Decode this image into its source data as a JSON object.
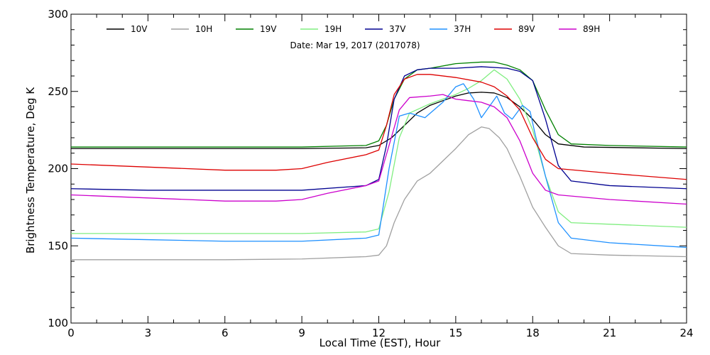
{
  "chart_data": {
    "type": "line",
    "title": "",
    "annotation": "Date: Mar 19, 2017 (2017078)",
    "xlabel": "Local Time (EST), Hour",
    "ylabel": "Brightness Temperature, Deg K",
    "xlim": [
      0,
      24
    ],
    "ylim": [
      100,
      300
    ],
    "xticks": [
      0,
      3,
      6,
      9,
      12,
      15,
      18,
      21,
      24
    ],
    "yticks": [
      100,
      150,
      200,
      250,
      300
    ],
    "grid": false,
    "legend_position": "top",
    "series": [
      {
        "name": "10V",
        "color": "#000000",
        "points": [
          [
            0,
            213
          ],
          [
            3,
            213
          ],
          [
            6,
            213
          ],
          [
            9,
            213
          ],
          [
            11.5,
            213.5
          ],
          [
            12,
            215
          ],
          [
            12.5,
            220
          ],
          [
            13,
            228
          ],
          [
            13.5,
            236
          ],
          [
            14,
            241
          ],
          [
            14.5,
            244
          ],
          [
            15,
            247
          ],
          [
            15.5,
            249
          ],
          [
            16,
            249.5
          ],
          [
            16.5,
            249
          ],
          [
            17,
            246
          ],
          [
            17.5,
            240
          ],
          [
            18,
            232
          ],
          [
            18.5,
            222
          ],
          [
            19,
            216
          ],
          [
            20,
            214
          ],
          [
            24,
            213
          ]
        ]
      },
      {
        "name": "10H",
        "color": "#a0a0a0",
        "points": [
          [
            0,
            141
          ],
          [
            3,
            141
          ],
          [
            6,
            141
          ],
          [
            9,
            141.5
          ],
          [
            11.5,
            143
          ],
          [
            12,
            144
          ],
          [
            12.3,
            150
          ],
          [
            12.6,
            165
          ],
          [
            13,
            180
          ],
          [
            13.5,
            192
          ],
          [
            14,
            197
          ],
          [
            14.5,
            205
          ],
          [
            15,
            213
          ],
          [
            15.5,
            222
          ],
          [
            16,
            227
          ],
          [
            16.3,
            226
          ],
          [
            16.7,
            220
          ],
          [
            17,
            213
          ],
          [
            17.5,
            195
          ],
          [
            18,
            175
          ],
          [
            18.5,
            162
          ],
          [
            19,
            150
          ],
          [
            19.5,
            145
          ],
          [
            21,
            144
          ],
          [
            24,
            143
          ]
        ]
      },
      {
        "name": "19V",
        "color": "#008000",
        "points": [
          [
            0,
            214
          ],
          [
            3,
            214
          ],
          [
            6,
            214
          ],
          [
            9,
            214
          ],
          [
            11.5,
            215
          ],
          [
            12,
            218
          ],
          [
            12.3,
            228
          ],
          [
            12.6,
            245
          ],
          [
            13,
            258
          ],
          [
            13.5,
            264
          ],
          [
            14,
            265
          ],
          [
            15,
            268
          ],
          [
            16,
            269
          ],
          [
            16.5,
            269
          ],
          [
            17,
            267
          ],
          [
            17.5,
            264
          ],
          [
            18,
            257
          ],
          [
            18.5,
            238
          ],
          [
            19,
            222
          ],
          [
            19.5,
            216
          ],
          [
            21,
            215
          ],
          [
            24,
            214
          ]
        ]
      },
      {
        "name": "19H",
        "color": "#80ee80",
        "points": [
          [
            0,
            158
          ],
          [
            3,
            158
          ],
          [
            6,
            158
          ],
          [
            9,
            158
          ],
          [
            11.5,
            159
          ],
          [
            12,
            161
          ],
          [
            12.4,
            185
          ],
          [
            12.8,
            220
          ],
          [
            13.2,
            236
          ],
          [
            14,
            242
          ],
          [
            15,
            248
          ],
          [
            15.5,
            252
          ],
          [
            16,
            257
          ],
          [
            16.5,
            264
          ],
          [
            17,
            258
          ],
          [
            17.5,
            245
          ],
          [
            18,
            225
          ],
          [
            18.5,
            195
          ],
          [
            19,
            172
          ],
          [
            19.5,
            165
          ],
          [
            21,
            164
          ],
          [
            24,
            162
          ]
        ]
      },
      {
        "name": "37V",
        "color": "#000090",
        "points": [
          [
            0,
            187
          ],
          [
            3,
            186
          ],
          [
            6,
            186
          ],
          [
            9,
            186
          ],
          [
            11.5,
            189
          ],
          [
            12,
            193
          ],
          [
            12.3,
            215
          ],
          [
            12.6,
            245
          ],
          [
            13,
            260
          ],
          [
            13.5,
            264
          ],
          [
            14,
            265
          ],
          [
            15,
            265
          ],
          [
            16,
            266
          ],
          [
            17,
            265
          ],
          [
            17.5,
            263
          ],
          [
            18,
            257
          ],
          [
            18.5,
            232
          ],
          [
            19,
            202
          ],
          [
            19.5,
            192
          ],
          [
            21,
            189
          ],
          [
            24,
            187
          ]
        ]
      },
      {
        "name": "37H",
        "color": "#1e90ff",
        "points": [
          [
            0,
            155
          ],
          [
            3,
            154
          ],
          [
            6,
            153
          ],
          [
            9,
            153
          ],
          [
            11.5,
            155
          ],
          [
            12,
            157
          ],
          [
            12.4,
            200
          ],
          [
            12.8,
            234
          ],
          [
            13.2,
            236
          ],
          [
            13.8,
            233
          ],
          [
            14.5,
            243
          ],
          [
            15,
            253
          ],
          [
            15.3,
            255
          ],
          [
            15.7,
            245
          ],
          [
            16,
            233
          ],
          [
            16.3,
            240
          ],
          [
            16.6,
            247
          ],
          [
            16.9,
            236
          ],
          [
            17.2,
            232
          ],
          [
            17.6,
            241
          ],
          [
            17.9,
            237
          ],
          [
            18.1,
            222
          ],
          [
            18.5,
            195
          ],
          [
            19,
            165
          ],
          [
            19.5,
            155
          ],
          [
            21,
            152
          ],
          [
            24,
            149
          ]
        ]
      },
      {
        "name": "89V",
        "color": "#dd0000",
        "points": [
          [
            0,
            203
          ],
          [
            3,
            201
          ],
          [
            6,
            199
          ],
          [
            8,
            199
          ],
          [
            9,
            200
          ],
          [
            10,
            204
          ],
          [
            11.5,
            209
          ],
          [
            12,
            212
          ],
          [
            12.3,
            228
          ],
          [
            12.6,
            248
          ],
          [
            13,
            258
          ],
          [
            13.5,
            261
          ],
          [
            14,
            261
          ],
          [
            15,
            259
          ],
          [
            16,
            256
          ],
          [
            16.5,
            253
          ],
          [
            17,
            247
          ],
          [
            17.5,
            238
          ],
          [
            18,
            220
          ],
          [
            18.5,
            206
          ],
          [
            19,
            200
          ],
          [
            21,
            197
          ],
          [
            24,
            193
          ]
        ]
      },
      {
        "name": "89H",
        "color": "#cc00cc",
        "points": [
          [
            0,
            183
          ],
          [
            3,
            181
          ],
          [
            6,
            179
          ],
          [
            8,
            179
          ],
          [
            9,
            180
          ],
          [
            10,
            184
          ],
          [
            11.5,
            189
          ],
          [
            12,
            192
          ],
          [
            12.4,
            215
          ],
          [
            12.8,
            238
          ],
          [
            13.2,
            246
          ],
          [
            14,
            247
          ],
          [
            14.5,
            248
          ],
          [
            15,
            245
          ],
          [
            15.5,
            244
          ],
          [
            16,
            243
          ],
          [
            16.5,
            240
          ],
          [
            17,
            233
          ],
          [
            17.5,
            218
          ],
          [
            18,
            197
          ],
          [
            18.5,
            186
          ],
          [
            19,
            183
          ],
          [
            21,
            180
          ],
          [
            24,
            177
          ]
        ]
      }
    ]
  }
}
